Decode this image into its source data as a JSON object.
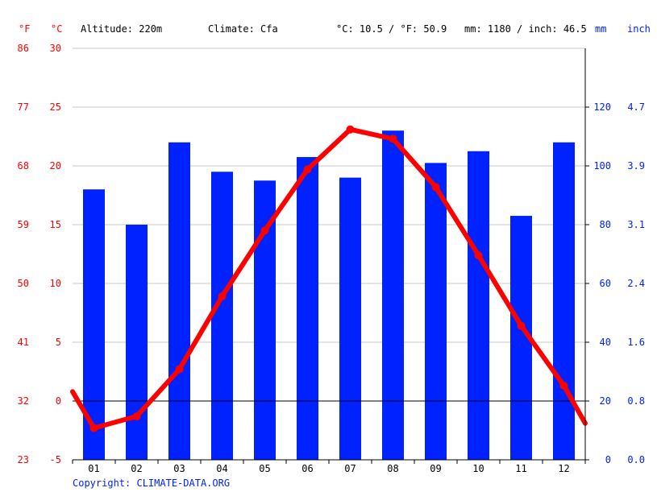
{
  "header": {
    "unit_f": "°F",
    "unit_c": "°C",
    "altitude": "Altitude: 220m",
    "climate": "Climate: Cfa",
    "avg_temp": "°C: 10.5 / °F: 50.9",
    "precip": "mm: 1180 / inch: 46.5",
    "unit_mm": "mm",
    "unit_inch": "inch"
  },
  "copyright": "Copyright: CLIMATE-DATA.ORG",
  "colors": {
    "temp": "#ff0000",
    "precip": "#0022ff",
    "grid": "#c8c8c8",
    "zero_line": "#000000",
    "text": "#000000"
  },
  "chart_data": {
    "type": "bar+line",
    "categories": [
      "01",
      "02",
      "03",
      "04",
      "05",
      "06",
      "07",
      "08",
      "09",
      "10",
      "11",
      "12"
    ],
    "precipitation_mm": [
      92,
      80,
      108,
      98,
      95,
      103,
      96,
      112,
      101,
      105,
      83,
      108
    ],
    "temperature_c": [
      -2.3,
      -1.3,
      2.7,
      8.9,
      14.5,
      19.7,
      23.1,
      22.3,
      18.2,
      12.4,
      6.4,
      1.3
    ],
    "temperature_edge_c": [
      0.8,
      -1.9
    ],
    "temp_axis_c": {
      "min": -5,
      "max": 30,
      "ticks": [
        "-5",
        "0",
        "5",
        "10",
        "15",
        "20",
        "25",
        "30"
      ]
    },
    "temp_axis_f": {
      "ticks": [
        "23",
        "32",
        "41",
        "50",
        "59",
        "68",
        "77",
        "86"
      ]
    },
    "precip_axis_mm": {
      "min": 0,
      "max": 140,
      "ticks": [
        "0",
        "20",
        "40",
        "60",
        "80",
        "100",
        "120"
      ]
    },
    "precip_axis_inch": {
      "ticks": [
        "0.0",
        "0.8",
        "1.6",
        "2.4",
        "3.1",
        "3.9",
        "4.7"
      ]
    },
    "grid": true,
    "legend": "none"
  }
}
